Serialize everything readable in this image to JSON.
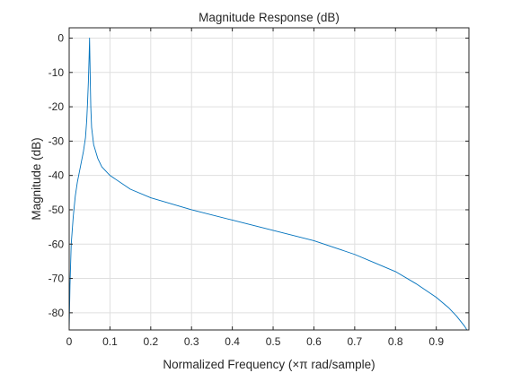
{
  "chart_data": {
    "type": "line",
    "title": "Magnitude Response (dB)",
    "xlabel": "Normalized Frequency (×π rad/sample)",
    "ylabel": "Magnitude (dB)",
    "xlim": [
      0,
      0.98
    ],
    "ylim": [
      -85,
      3
    ],
    "xticks": [
      0,
      0.1,
      0.2,
      0.3,
      0.4,
      0.5,
      0.6,
      0.7,
      0.8,
      0.9
    ],
    "yticks": [
      0,
      -10,
      -20,
      -30,
      -40,
      -50,
      -60,
      -70,
      -80
    ],
    "grid": true,
    "line_color": "#0072bd",
    "series": [
      {
        "x": [
          0.0,
          0.002,
          0.005,
          0.01,
          0.015,
          0.02,
          0.025,
          0.03,
          0.035,
          0.04,
          0.043,
          0.045,
          0.047,
          0.048,
          0.049,
          0.05,
          0.051,
          0.052,
          0.053,
          0.055,
          0.06,
          0.07,
          0.08,
          0.1,
          0.15,
          0.2,
          0.3,
          0.4,
          0.5,
          0.6,
          0.7,
          0.75,
          0.8,
          0.85,
          0.9,
          0.93,
          0.95,
          0.97,
          0.98
        ],
        "y": [
          -85,
          -72,
          -60,
          -52,
          -46,
          -42,
          -39,
          -36,
          -33,
          -29,
          -24,
          -19,
          -13,
          -9,
          -5,
          0,
          -7,
          -14,
          -20,
          -26,
          -31,
          -35,
          -37.5,
          -40,
          -44,
          -46.5,
          -50,
          -53,
          -56,
          -59,
          -63,
          -65.5,
          -68,
          -71.5,
          -75.5,
          -78.5,
          -81,
          -84,
          -86
        ]
      }
    ]
  }
}
